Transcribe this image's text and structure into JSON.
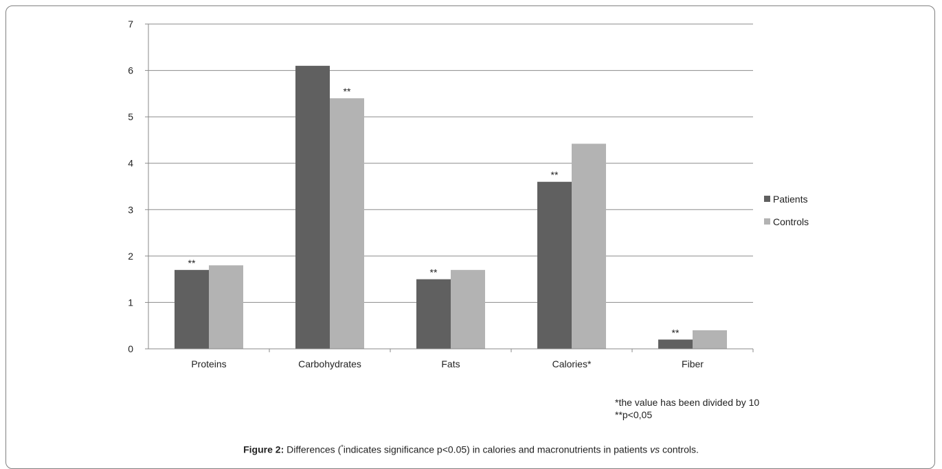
{
  "chart_data": {
    "type": "bar",
    "title": "",
    "xlabel": "",
    "ylabel": "",
    "categories": [
      "Proteins",
      "Carbohydrates",
      "Fats",
      "Calories*",
      "Fiber"
    ],
    "series": [
      {
        "name": "Patients",
        "color": "#606060",
        "values": [
          1.7,
          6.1,
          1.5,
          3.6,
          0.2
        ],
        "annotations": [
          "**",
          "",
          "**",
          "**",
          "**"
        ]
      },
      {
        "name": "Controls",
        "color": "#b3b3b3",
        "values": [
          1.8,
          5.4,
          1.7,
          4.42,
          0.4
        ],
        "annotations": [
          "",
          "**",
          "",
          "",
          ""
        ]
      }
    ],
    "ylim": [
      0,
      7
    ],
    "yticks": [
      "0",
      "1",
      "2",
      "3",
      "4",
      "5",
      "6",
      "7"
    ],
    "grid": true,
    "legend_position": "right"
  },
  "notes": {
    "line1": "*the value  has been divided by 10",
    "line2": "**p<0,05"
  },
  "caption": {
    "label": "Figure 2:",
    "text_before": " Differences (",
    "sup": "*",
    "text_middle": "indicates significance p<0.05) in calories and macronutrients in patients ",
    "vs": "vs",
    "text_after": " controls."
  }
}
